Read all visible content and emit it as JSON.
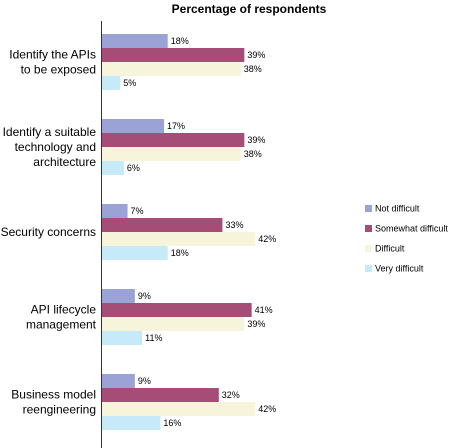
{
  "chart_data": {
    "type": "bar",
    "orientation": "horizontal",
    "title": "Percentage of respondents",
    "xlabel": "",
    "ylabel": "",
    "xlim": [
      0,
      100
    ],
    "value_suffix": "%",
    "grid": false,
    "legend_position": "right",
    "categories": [
      [
        "Identify the APIs",
        "to be exposed"
      ],
      [
        "Identify a suitable",
        "technology and",
        "architecture"
      ],
      [
        "Security concerns"
      ],
      [
        "API lifecycle",
        "management"
      ],
      [
        "Business model",
        "reengineering"
      ]
    ],
    "series": [
      {
        "name": "Not difficult",
        "color": "#9ba3d6",
        "values": [
          18,
          17,
          7,
          9,
          9
        ]
      },
      {
        "name": "Somewhat difficult",
        "color": "#a64d77",
        "values": [
          39,
          39,
          33,
          41,
          32
        ]
      },
      {
        "name": "Difficult",
        "color": "#f6f5dc",
        "values": [
          38,
          38,
          42,
          39,
          42
        ]
      },
      {
        "name": "Very difficult",
        "color": "#c6eaf7",
        "values": [
          5,
          6,
          18,
          11,
          16
        ]
      }
    ]
  }
}
